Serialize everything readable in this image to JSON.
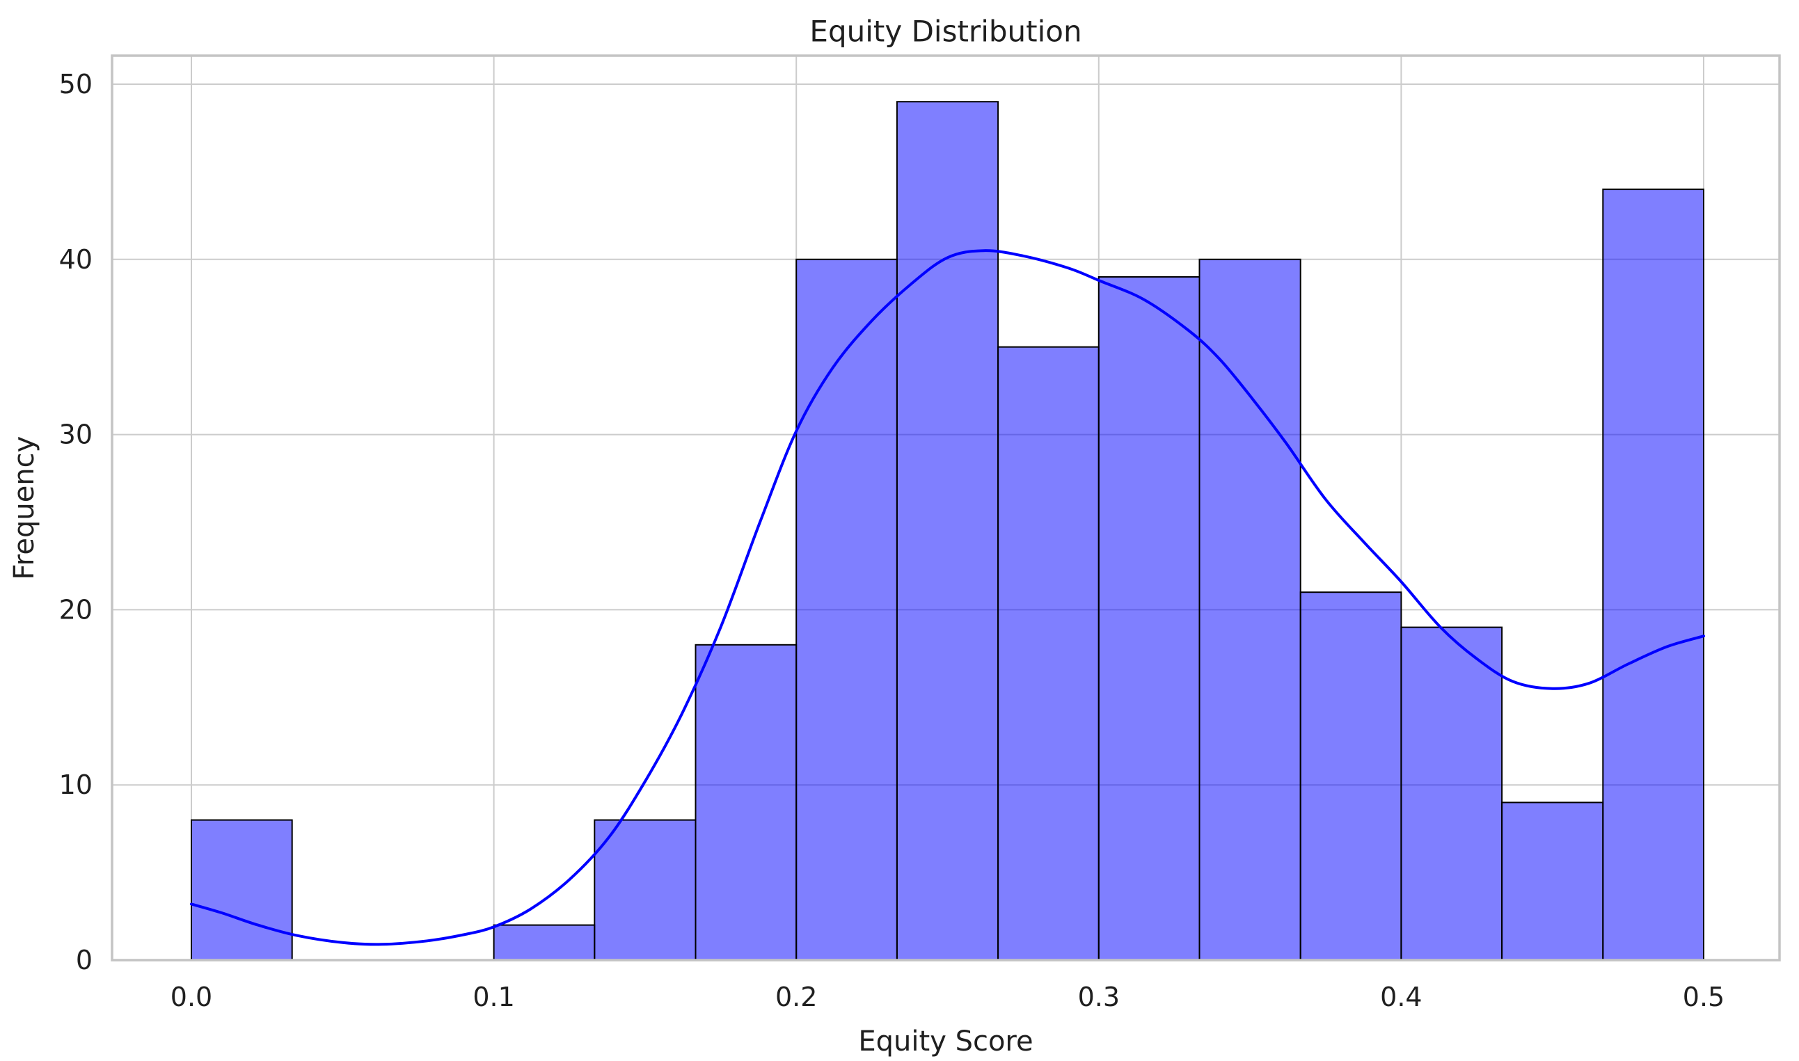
{
  "chart_data": {
    "type": "bar",
    "subtype": "histogram_with_kde",
    "title": "Equity Distribution",
    "xlabel": "Equity Score",
    "ylabel": "Frequency",
    "grid": true,
    "legend": "none",
    "xlim": [
      -0.026,
      0.525
    ],
    "ylim": [
      0,
      51.45
    ],
    "x_ticks": [
      "0.0",
      "0.1",
      "0.2",
      "0.3",
      "0.4",
      "0.5"
    ],
    "x_tick_values": [
      0.0,
      0.1,
      0.2,
      0.3,
      0.4,
      0.5
    ],
    "y_ticks": [
      "0",
      "10",
      "20",
      "30",
      "40",
      "50"
    ],
    "y_tick_values": [
      0,
      10,
      20,
      30,
      40,
      50
    ],
    "bin_edges": [
      0.0,
      0.0333,
      0.0667,
      0.1,
      0.1333,
      0.1667,
      0.2,
      0.2333,
      0.2667,
      0.3,
      0.3333,
      0.3667,
      0.4,
      0.4333,
      0.4667,
      0.5
    ],
    "frequencies": [
      8,
      0,
      0,
      2,
      8,
      18,
      40,
      49,
      35,
      39,
      40,
      21,
      19,
      9,
      44
    ],
    "kde_curve": [
      [
        0.0,
        3.2
      ],
      [
        0.01,
        2.7
      ],
      [
        0.022,
        2.0
      ],
      [
        0.035,
        1.4
      ],
      [
        0.05,
        1.0
      ],
      [
        0.063,
        0.9
      ],
      [
        0.078,
        1.1
      ],
      [
        0.09,
        1.45
      ],
      [
        0.1,
        1.9
      ],
      [
        0.112,
        2.9
      ],
      [
        0.125,
        4.6
      ],
      [
        0.138,
        7.0
      ],
      [
        0.15,
        10.2
      ],
      [
        0.162,
        14.0
      ],
      [
        0.175,
        19.0
      ],
      [
        0.188,
        25.0
      ],
      [
        0.2,
        30.2
      ],
      [
        0.212,
        33.8
      ],
      [
        0.225,
        36.5
      ],
      [
        0.238,
        38.6
      ],
      [
        0.25,
        40.1
      ],
      [
        0.262,
        40.5
      ],
      [
        0.275,
        40.2
      ],
      [
        0.29,
        39.5
      ],
      [
        0.3,
        38.8
      ],
      [
        0.315,
        37.7
      ],
      [
        0.33,
        35.9
      ],
      [
        0.34,
        34.3
      ],
      [
        0.351,
        32.0
      ],
      [
        0.362,
        29.5
      ],
      [
        0.375,
        26.3
      ],
      [
        0.388,
        23.8
      ],
      [
        0.4,
        21.6
      ],
      [
        0.413,
        19.0
      ],
      [
        0.425,
        17.2
      ],
      [
        0.437,
        15.9
      ],
      [
        0.45,
        15.5
      ],
      [
        0.462,
        15.8
      ],
      [
        0.475,
        16.9
      ],
      [
        0.488,
        17.9
      ],
      [
        0.5,
        18.5
      ]
    ],
    "colors": {
      "bar_fill": "#0000ff",
      "bar_fill_alpha": 0.5,
      "bar_fill_effective": "#8080ff",
      "bar_edge": "#000000",
      "kde_line": "#0000ff",
      "grid": "#cccccc",
      "spine": "#c4c4c4",
      "text": "#1f1f1f"
    }
  }
}
